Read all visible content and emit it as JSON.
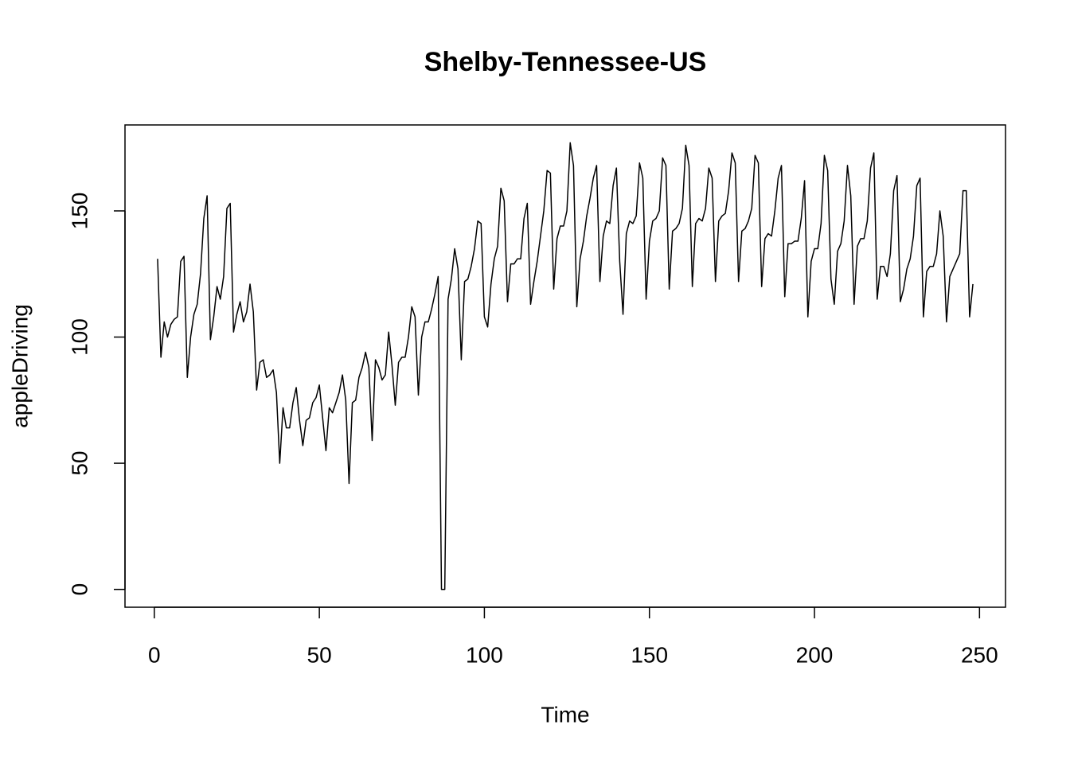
{
  "chart_data": {
    "type": "line",
    "title": "Shelby-Tennessee-US",
    "x_label": "Time",
    "y_label": "appleDriving",
    "x": [
      1,
      2,
      3,
      4,
      5,
      6,
      7,
      8,
      9,
      10,
      11,
      12,
      13,
      14,
      15,
      16,
      17,
      18,
      19,
      20,
      21,
      22,
      23,
      24,
      25,
      26,
      27,
      28,
      29,
      30,
      31,
      32,
      33,
      34,
      35,
      36,
      37,
      38,
      39,
      40,
      41,
      42,
      43,
      44,
      45,
      46,
      47,
      48,
      49,
      50,
      51,
      52,
      53,
      54,
      55,
      56,
      57,
      58,
      59,
      60,
      61,
      62,
      63,
      64,
      65,
      66,
      67,
      68,
      69,
      70,
      71,
      72,
      73,
      74,
      75,
      76,
      77,
      78,
      79,
      80,
      81,
      82,
      83,
      84,
      85,
      86,
      87,
      88,
      89,
      90,
      91,
      92,
      93,
      94,
      95,
      96,
      97,
      98,
      99,
      100,
      101,
      102,
      103,
      104,
      105,
      106,
      107,
      108,
      109,
      110,
      111,
      112,
      113,
      114,
      115,
      116,
      117,
      118,
      119,
      120,
      121,
      122,
      123,
      124,
      125,
      126,
      127,
      128,
      129,
      130,
      131,
      132,
      133,
      134,
      135,
      136,
      137,
      138,
      139,
      140,
      141,
      142,
      143,
      144,
      145,
      146,
      147,
      148,
      149,
      150,
      151,
      152,
      153,
      154,
      155,
      156,
      157,
      158,
      159,
      160,
      161,
      162,
      163,
      164,
      165,
      166,
      167,
      168,
      169,
      170,
      171,
      172,
      173,
      174,
      175,
      176,
      177,
      178,
      179,
      180,
      181,
      182,
      183,
      184,
      185,
      186,
      187,
      188,
      189,
      190,
      191,
      192,
      193,
      194,
      195,
      196,
      197,
      198,
      199,
      200,
      201,
      202,
      203,
      204,
      205,
      206,
      207,
      208,
      209,
      210,
      211,
      212,
      213,
      214,
      215,
      216,
      217,
      218,
      219,
      220,
      221,
      222,
      223,
      224,
      225,
      226,
      227,
      228,
      229,
      230,
      231,
      232,
      233,
      234,
      235,
      236,
      237,
      238,
      239,
      240,
      241,
      242,
      243,
      244,
      245,
      246,
      247,
      248
    ],
    "series": [
      {
        "name": "appleDriving",
        "color": "#000000",
        "values": [
          131,
          92,
          106,
          100,
          105,
          107,
          108,
          130,
          132,
          84,
          100,
          109,
          113,
          125,
          147,
          156,
          99,
          108,
          120,
          115,
          124,
          151,
          153,
          102,
          109,
          114,
          106,
          110,
          121,
          110,
          79,
          90,
          91,
          84,
          85,
          87,
          78,
          50,
          72,
          64,
          64,
          74,
          80,
          67,
          57,
          67,
          68,
          74,
          76,
          81,
          68,
          55,
          72,
          70,
          74,
          78,
          85,
          75,
          42,
          74,
          75,
          84,
          88,
          94,
          88,
          59,
          91,
          88,
          83,
          85,
          102,
          89,
          73,
          90,
          92,
          92,
          100,
          112,
          108,
          77,
          100,
          106,
          106,
          111,
          117,
          124,
          0,
          0,
          115,
          123,
          135,
          127,
          91,
          122,
          123,
          128,
          135,
          146,
          145,
          108,
          104,
          121,
          131,
          136,
          159,
          154,
          114,
          129,
          129,
          131,
          131,
          147,
          153,
          113,
          122,
          130,
          140,
          150,
          166,
          165,
          119,
          139,
          144,
          144,
          150,
          177,
          168,
          112,
          131,
          138,
          148,
          155,
          163,
          168,
          122,
          140,
          146,
          145,
          160,
          167,
          130,
          109,
          141,
          146,
          145,
          148,
          169,
          163,
          115,
          138,
          146,
          147,
          150,
          171,
          168,
          119,
          142,
          143,
          145,
          151,
          176,
          168,
          120,
          145,
          147,
          146,
          151,
          167,
          163,
          122,
          146,
          148,
          149,
          158,
          173,
          169,
          122,
          142,
          143,
          146,
          151,
          172,
          169,
          120,
          139,
          141,
          140,
          150,
          163,
          168,
          116,
          137,
          137,
          138,
          138,
          147,
          162,
          108,
          130,
          135,
          135,
          145,
          172,
          166,
          123,
          113,
          134,
          137,
          146,
          168,
          156,
          113,
          136,
          139,
          139,
          146,
          167,
          173,
          115,
          128,
          128,
          124,
          133,
          158,
          164,
          114,
          119,
          127,
          131,
          140,
          160,
          163,
          108,
          126,
          128,
          128,
          133,
          150,
          140,
          106,
          124,
          127,
          130,
          133,
          158,
          158,
          108,
          121
        ]
      }
    ],
    "xlim": [
      -8.88,
      257.88
    ],
    "ylim": [
      -7.06,
      184.06
    ],
    "xticks": [
      0,
      50,
      100,
      150,
      200,
      250
    ],
    "yticks": [
      0,
      50,
      100,
      150
    ]
  }
}
